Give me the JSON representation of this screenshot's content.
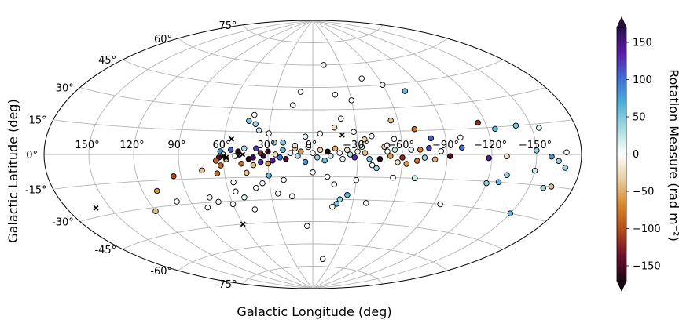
{
  "chart_data": {
    "type": "scatter",
    "projection": "aitoff",
    "xlabel": "Galactic Longitude (deg)",
    "ylabel": "Galactic Latitude (deg)",
    "xlim": [
      -180,
      180
    ],
    "ylim": [
      -90,
      90
    ],
    "grid": true,
    "lon_tick_labels": [
      {
        "value": 150,
        "label": "150°"
      },
      {
        "value": 120,
        "label": "120°"
      },
      {
        "value": 90,
        "label": "90°"
      },
      {
        "value": 60,
        "label": "60°"
      },
      {
        "value": 30,
        "label": "30°"
      },
      {
        "value": 0,
        "label": "0°"
      },
      {
        "value": -30,
        "label": "−30°"
      },
      {
        "value": -60,
        "label": "−60°"
      },
      {
        "value": -90,
        "label": "−90°"
      },
      {
        "value": -120,
        "label": "−120°"
      },
      {
        "value": -150,
        "label": "−150°"
      }
    ],
    "lat_tick_labels": [
      {
        "value": 75,
        "label": "75°"
      },
      {
        "value": 60,
        "label": "60°"
      },
      {
        "value": 45,
        "label": "45°"
      },
      {
        "value": 30,
        "label": "30°"
      },
      {
        "value": 15,
        "label": "15°"
      },
      {
        "value": 0,
        "label": "0°"
      },
      {
        "value": -15,
        "label": "-15°"
      },
      {
        "value": -30,
        "label": "-30°"
      },
      {
        "value": -45,
        "label": "-45°"
      },
      {
        "value": -60,
        "label": "-60°"
      },
      {
        "value": -75,
        "label": "-75°"
      }
    ],
    "colorbar": {
      "label": "Rotation Measure (rad m⁻²)",
      "min": -170,
      "max": 170,
      "ticks": [
        150,
        100,
        50,
        0,
        -50,
        -100,
        -150
      ],
      "tick_labels": [
        "150",
        "100",
        "50",
        "0",
        "−50",
        "−100",
        "−150"
      ],
      "extend": "both",
      "colormap_stops": [
        "#1a0713",
        "#6e0f2c",
        "#b24a19",
        "#d6872d",
        "#e8cf9f",
        "#ffffff",
        "#a8dbe0",
        "#4fb0d8",
        "#3d6fd2",
        "#5a1ba8",
        "#281046"
      ]
    },
    "marker_sizes_note": "",
    "points": [
      {
        "lon": 43,
        "lat": -3,
        "rm": -165
      },
      {
        "lon": 40,
        "lat": -2,
        "rm": 160
      },
      {
        "lon": 38,
        "lat": 4,
        "rm": 120
      },
      {
        "lon": 35,
        "lat": 1,
        "rm": -120
      },
      {
        "lon": 33,
        "lat": -1,
        "rm": 170
      },
      {
        "lon": 30,
        "lat": 2,
        "rm": -160
      },
      {
        "lon": 27,
        "lat": -4,
        "rm": 140
      },
      {
        "lon": 25,
        "lat": 0,
        "rm": -20
      },
      {
        "lon": 22,
        "lat": -2,
        "rm": 100
      },
      {
        "lon": 20,
        "lat": 3,
        "rm": 60
      },
      {
        "lon": 18,
        "lat": -3,
        "rm": -150
      },
      {
        "lon": 15,
        "lat": 1,
        "rm": 10
      },
      {
        "lon": 12,
        "lat": 4,
        "rm": -40
      },
      {
        "lon": 10,
        "lat": -1,
        "rm": 30
      },
      {
        "lon": 8,
        "lat": 2,
        "rm": -60
      },
      {
        "lon": 5,
        "lat": -5,
        "rm": 80
      },
      {
        "lon": 3,
        "lat": 5,
        "rm": -10
      },
      {
        "lon": 0,
        "lat": 1,
        "rm": 0
      },
      {
        "lon": -3,
        "lat": -2,
        "rm": 40
      },
      {
        "lon": -5,
        "lat": 3,
        "rm": -30
      },
      {
        "lon": -8,
        "lat": -4,
        "rm": 60
      },
      {
        "lon": -10,
        "lat": 2,
        "rm": -170
      },
      {
        "lon": -12,
        "lat": -1,
        "rm": 20
      },
      {
        "lon": -15,
        "lat": 4,
        "rm": -50
      },
      {
        "lon": -18,
        "lat": 1,
        "rm": 0
      },
      {
        "lon": -20,
        "lat": -3,
        "rm": 10
      },
      {
        "lon": -23,
        "lat": 3,
        "rm": -20
      },
      {
        "lon": -25,
        "lat": 0,
        "rm": 30
      },
      {
        "lon": -28,
        "lat": -2,
        "rm": 130
      },
      {
        "lon": -30,
        "lat": 2,
        "rm": -5
      },
      {
        "lon": -33,
        "lat": 5,
        "rm": 15
      },
      {
        "lon": -35,
        "lat": 1,
        "rm": -40
      },
      {
        "lon": -38,
        "lat": -3,
        "rm": 50
      },
      {
        "lon": -40,
        "lat": -7,
        "rm": 5
      },
      {
        "lon": -43,
        "lat": -9,
        "rm": 40
      },
      {
        "lon": -45,
        "lat": -3,
        "rm": -165
      },
      {
        "lon": -48,
        "lat": 5,
        "rm": -30
      },
      {
        "lon": -50,
        "lat": 2,
        "rm": 0
      },
      {
        "lon": -52,
        "lat": -1,
        "rm": -60
      },
      {
        "lon": -55,
        "lat": 3,
        "rm": 20
      },
      {
        "lon": -57,
        "lat": -5,
        "rm": -20
      },
      {
        "lon": -60,
        "lat": -2,
        "rm": -120
      },
      {
        "lon": -63,
        "lat": -6,
        "rm": -60
      },
      {
        "lon": -66,
        "lat": 3,
        "rm": 10
      },
      {
        "lon": -70,
        "lat": -4,
        "rm": -80
      },
      {
        "lon": -72,
        "lat": 3,
        "rm": -70
      },
      {
        "lon": -75,
        "lat": -2,
        "rm": 40
      },
      {
        "lon": -78,
        "lat": 4,
        "rm": 120
      },
      {
        "lon": -82,
        "lat": -3,
        "rm": -50
      },
      {
        "lon": -86,
        "lat": 2,
        "rm": 0
      },
      {
        "lon": -92,
        "lat": -1,
        "rm": -150
      },
      {
        "lon": -100,
        "lat": 4,
        "rm": 100
      },
      {
        "lon": -118,
        "lat": -2,
        "rm": 140
      },
      {
        "lon": -130,
        "lat": -1,
        "rm": -20
      },
      {
        "lon": -150,
        "lat": 2,
        "rm": 40
      },
      {
        "lon": -160,
        "lat": -1,
        "rm": 80
      },
      {
        "lon": -170,
        "lat": 1,
        "rm": 0
      },
      {
        "lon": -165,
        "lat": -3,
        "rm": 40
      },
      {
        "lon": 62,
        "lat": 2,
        "rm": 80
      },
      {
        "lon": 58,
        "lat": -3,
        "rm": -40
      },
      {
        "lon": 55,
        "lat": 3,
        "rm": 110
      },
      {
        "lon": 52,
        "lat": -1,
        "rm": 0
      },
      {
        "lon": 60,
        "lat": 0,
        "rm": 10
      },
      {
        "lon": 63,
        "lat": -2,
        "rm": -150
      },
      {
        "lon": 65,
        "lat": -4,
        "rm": -90
      },
      {
        "lon": 62,
        "lat": -7,
        "rm": -80
      },
      {
        "lon": 48,
        "lat": -6,
        "rm": -80
      },
      {
        "lon": 46,
        "lat": 4,
        "rm": 30
      },
      {
        "lon": 50,
        "lat": 2,
        "rm": -165
      },
      {
        "lon": 30,
        "lat": -6,
        "rm": -60
      },
      {
        "lon": 35,
        "lat": -5,
        "rm": 130
      },
      {
        "lon": 40,
        "lat": -7,
        "rm": -40
      },
      {
        "lon": 26,
        "lat": 8,
        "rm": 30
      },
      {
        "lon": 30,
        "lat": 14,
        "rm": 0
      },
      {
        "lon": 20,
        "lat": 8,
        "rm": 50
      },
      {
        "lon": 12,
        "lat": 6,
        "rm": -20
      },
      {
        "lon": 45,
        "lat": 22,
        "rm": 50
      },
      {
        "lon": 40,
        "lat": 20,
        "rm": 40
      },
      {
        "lon": 42,
        "lat": 26,
        "rm": 0
      },
      {
        "lon": 37,
        "lat": 16,
        "rm": 20
      },
      {
        "lon": 10,
        "lat": 42,
        "rm": 0
      },
      {
        "lon": 15,
        "lat": 33,
        "rm": 5
      },
      {
        "lon": 5,
        "lat": 12,
        "rm": 10
      },
      {
        "lon": -5,
        "lat": 14,
        "rm": 0
      },
      {
        "lon": -15,
        "lat": 18,
        "rm": -20
      },
      {
        "lon": -20,
        "lat": 24,
        "rm": 0
      },
      {
        "lon": -28,
        "lat": 15,
        "rm": 0
      },
      {
        "lon": -35,
        "lat": 10,
        "rm": -30
      },
      {
        "lon": -40,
        "lat": 12,
        "rm": 0
      },
      {
        "lon": -12,
        "lat": 60,
        "rm": 5
      },
      {
        "lon": -18,
        "lat": 40,
        "rm": 0
      },
      {
        "lon": -30,
        "lat": 36,
        "rm": 0
      },
      {
        "lon": -45,
        "lat": 50,
        "rm": 0
      },
      {
        "lon": -60,
        "lat": 45,
        "rm": 5
      },
      {
        "lon": -75,
        "lat": 40,
        "rm": 60
      },
      {
        "lon": -55,
        "lat": 22,
        "rm": -40
      },
      {
        "lon": -70,
        "lat": 16,
        "rm": -80
      },
      {
        "lon": -80,
        "lat": 10,
        "rm": 110
      },
      {
        "lon": -115,
        "lat": 18,
        "rm": -120
      },
      {
        "lon": -125,
        "lat": 14,
        "rm": 60
      },
      {
        "lon": -140,
        "lat": 15,
        "rm": 50
      },
      {
        "lon": -155,
        "lat": 13,
        "rm": 10
      },
      {
        "lon": -100,
        "lat": 10,
        "rm": 0
      },
      {
        "lon": -50,
        "lat": 6,
        "rm": 0
      },
      {
        "lon": -55,
        "lat": 10,
        "rm": 0
      },
      {
        "lon": 30,
        "lat": -14,
        "rm": 60
      },
      {
        "lon": 45,
        "lat": -12,
        "rm": -40
      },
      {
        "lon": 55,
        "lat": -18,
        "rm": 0
      },
      {
        "lon": 65,
        "lat": -12,
        "rm": -80
      },
      {
        "lon": 75,
        "lat": -10,
        "rm": -40
      },
      {
        "lon": 95,
        "lat": -13,
        "rm": -100
      },
      {
        "lon": 110,
        "lat": -21,
        "rm": -60
      },
      {
        "lon": 100,
        "lat": -28,
        "rm": 0
      },
      {
        "lon": 75,
        "lat": -27,
        "rm": 0
      },
      {
        "lon": 55,
        "lat": -24,
        "rm": 0
      },
      {
        "lon": 50,
        "lat": -28,
        "rm": 10
      },
      {
        "lon": 45,
        "lat": -36,
        "rm": 0
      },
      {
        "lon": 60,
        "lat": -32,
        "rm": 0
      },
      {
        "lon": 70,
        "lat": -30,
        "rm": 5
      },
      {
        "lon": 20,
        "lat": -17,
        "rm": 0
      },
      {
        "lon": 0,
        "lat": -12,
        "rm": 0
      },
      {
        "lon": -10,
        "lat": -15,
        "rm": 0
      },
      {
        "lon": -15,
        "lat": -20,
        "rm": 0
      },
      {
        "lon": -20,
        "lat": -30,
        "rm": 40
      },
      {
        "lon": -25,
        "lat": -27,
        "rm": 60
      },
      {
        "lon": -18,
        "lat": -33,
        "rm": 50
      },
      {
        "lon": -15,
        "lat": -35,
        "rm": 0
      },
      {
        "lon": -30,
        "lat": -17,
        "rm": 0
      },
      {
        "lon": -40,
        "lat": -32,
        "rm": 0
      },
      {
        "lon": -55,
        "lat": -15,
        "rm": 0
      },
      {
        "lon": -70,
        "lat": -15,
        "rm": 20
      },
      {
        "lon": -95,
        "lat": -30,
        "rm": 0
      },
      {
        "lon": -120,
        "lat": -16,
        "rm": 40
      },
      {
        "lon": -128,
        "lat": -15,
        "rm": 60
      },
      {
        "lon": -132,
        "lat": -11,
        "rm": 40
      },
      {
        "lon": -150,
        "lat": -8,
        "rm": 20
      },
      {
        "lon": -160,
        "lat": -16,
        "rm": 40
      },
      {
        "lon": -165,
        "lat": -15,
        "rm": -40
      },
      {
        "lon": -170,
        "lat": -6,
        "rm": 40
      },
      {
        "lon": -150,
        "lat": -30,
        "rm": 60
      },
      {
        "lon": 5,
        "lat": -48,
        "rm": 0
      },
      {
        "lon": -15,
        "lat": -70,
        "rm": 0
      },
      {
        "lon": 15,
        "lat": -28,
        "rm": 0
      },
      {
        "lon": 80,
        "lat": -33,
        "rm": 0
      },
      {
        "lon": 120,
        "lat": -32,
        "rm": -40
      },
      {
        "lon": 25,
        "lat": -26,
        "rm": 0
      },
      {
        "lon": 35,
        "lat": -19,
        "rm": 0
      },
      {
        "lon": 40,
        "lat": -22,
        "rm": 0
      }
    ],
    "cross_markers": [
      {
        "lon": 55,
        "lat": 10
      },
      {
        "lon": 60,
        "lat": -1
      },
      {
        "lon": 58,
        "lat": -2
      },
      {
        "lon": 50,
        "lat": -1
      },
      {
        "lon": 47,
        "lat": 0
      },
      {
        "lon": -20,
        "lat": 13
      },
      {
        "lon": 160,
        "lat": -26
      },
      {
        "lon": 60,
        "lat": -45
      }
    ]
  }
}
